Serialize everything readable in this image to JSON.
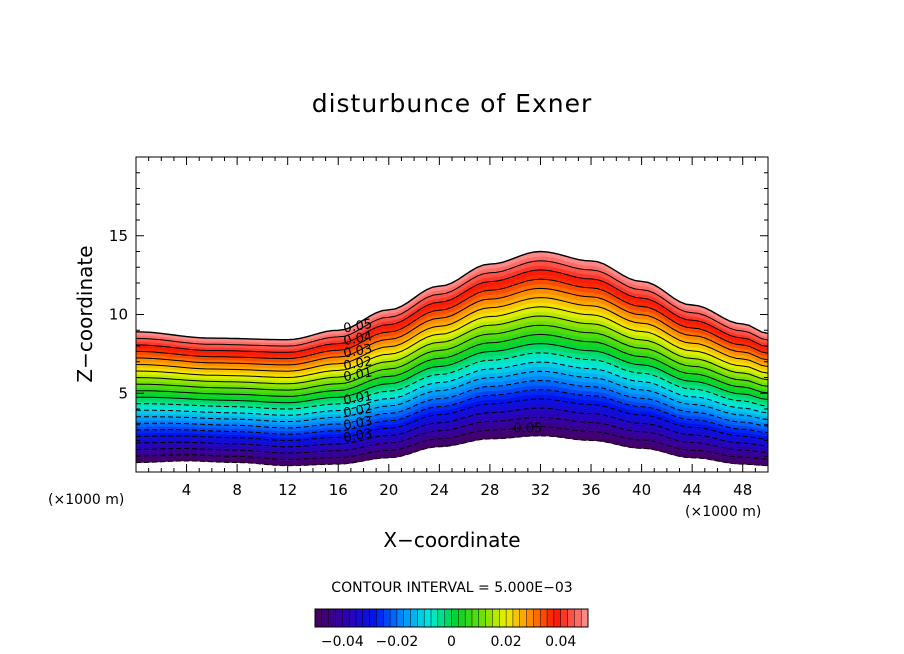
{
  "chart_data": {
    "type": "contour",
    "title": "disturbunce of Exner",
    "xlabel": "X−coordinate",
    "ylabel": "Z−coordinate",
    "x_unit": "(×1000 m)",
    "xlim": [
      0,
      50
    ],
    "ylim": [
      0,
      20
    ],
    "x_ticks": [
      4,
      8,
      12,
      16,
      20,
      24,
      28,
      32,
      36,
      40,
      44,
      48
    ],
    "y_ticks": [
      5,
      10,
      15
    ],
    "contour_interval_label": "CONTOUR INTERVAL = 5.000E−03",
    "contour_labels": [
      "0.05",
      "0.04",
      "0.03",
      "0.02",
      "0.01",
      "0.01",
      "0.02",
      "0.03",
      "0.03",
      "0.05"
    ],
    "contour_levels": [
      -0.05,
      -0.045,
      -0.04,
      -0.035,
      -0.03,
      -0.025,
      -0.02,
      -0.015,
      -0.01,
      -0.005,
      0,
      0.005,
      0.01,
      0.015,
      0.02,
      0.025,
      0.03,
      0.035,
      0.04,
      0.045,
      0.05
    ],
    "top_boundary": {
      "x": [
        0,
        6,
        12,
        16,
        20,
        24,
        28,
        32,
        36,
        40,
        44,
        48,
        50
      ],
      "z": [
        8.9,
        8.5,
        8.4,
        9.0,
        10.3,
        11.8,
        13.2,
        14.0,
        13.4,
        12.1,
        10.6,
        9.4,
        8.8
      ]
    },
    "bottom_boundary": {
      "x": [
        0,
        4,
        8,
        12,
        16,
        20,
        24,
        28,
        32,
        36,
        40,
        44,
        48,
        50
      ],
      "z": [
        0.6,
        0.7,
        0.6,
        0.4,
        0.5,
        0.9,
        1.6,
        2.1,
        2.3,
        2.0,
        1.5,
        0.9,
        0.5,
        0.4
      ]
    },
    "colorbar": {
      "ticks": [
        "−0.04",
        "−0.02",
        "0",
        "0.02",
        "0.04"
      ],
      "range": [
        -0.05,
        0.05
      ]
    },
    "grid": false,
    "colormap": "rainbow"
  }
}
